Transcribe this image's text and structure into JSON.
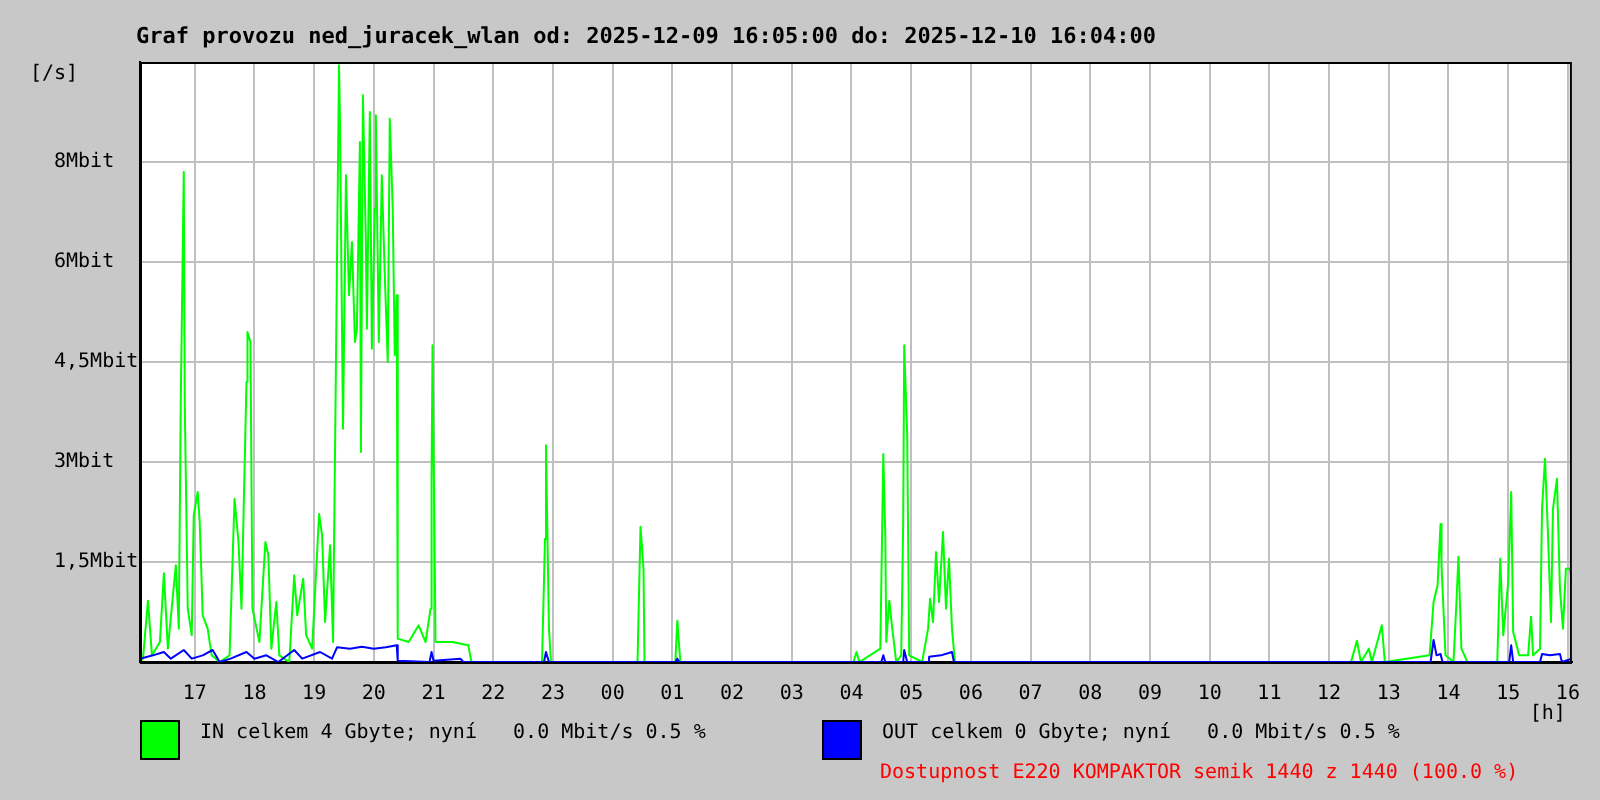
{
  "chart_data": {
    "type": "line",
    "title": "Graf provozu ned_juracek_wlan od: 2025-12-09 16:05:00 do: 2025-12-10 16:04:00",
    "xlabel": "[h]",
    "ylabel": "[/s]",
    "annotations": [
      "Dostupnost E220 KOMPAKTOR semik 1440 z 1440 (100.0 %)"
    ],
    "xlim": [
      "2025-12-09T16:05",
      "2025-12-10T16:04"
    ],
    "xticks": [
      {
        "value": "2025-12-09T17:00",
        "label": "17"
      },
      {
        "value": "2025-12-09T18:00",
        "label": "18"
      },
      {
        "value": "2025-12-09T19:00",
        "label": "19"
      },
      {
        "value": "2025-12-09T20:00",
        "label": "20"
      },
      {
        "value": "2025-12-09T21:00",
        "label": "21"
      },
      {
        "value": "2025-12-09T22:00",
        "label": "22"
      },
      {
        "value": "2025-12-09T23:00",
        "label": "23"
      },
      {
        "value": "2025-12-10T00:00",
        "label": "00"
      },
      {
        "value": "2025-12-10T01:00",
        "label": "01"
      },
      {
        "value": "2025-12-10T02:00",
        "label": "02"
      },
      {
        "value": "2025-12-10T03:00",
        "label": "03"
      },
      {
        "value": "2025-12-10T04:00",
        "label": "04"
      },
      {
        "value": "2025-12-10T05:00",
        "label": "05"
      },
      {
        "value": "2025-12-10T06:00",
        "label": "06"
      },
      {
        "value": "2025-12-10T07:00",
        "label": "07"
      },
      {
        "value": "2025-12-10T08:00",
        "label": "08"
      },
      {
        "value": "2025-12-10T09:00",
        "label": "09"
      },
      {
        "value": "2025-12-10T10:00",
        "label": "10"
      },
      {
        "value": "2025-12-10T11:00",
        "label": "11"
      },
      {
        "value": "2025-12-10T12:00",
        "label": "12"
      },
      {
        "value": "2025-12-10T13:00",
        "label": "13"
      },
      {
        "value": "2025-12-10T14:00",
        "label": "14"
      },
      {
        "value": "2025-12-10T15:00",
        "label": "15"
      },
      {
        "value": "2025-12-10T16:00",
        "label": "16"
      }
    ],
    "ylim": [
      0,
      9
    ],
    "yticks": [
      {
        "value": 1.5,
        "label": "1,5Mbit"
      },
      {
        "value": 3,
        "label": "3Mbit"
      },
      {
        "value": 4.5,
        "label": "4,5Mbit"
      },
      {
        "value": 6,
        "label": "6Mbit"
      },
      {
        "value": 7.5,
        "label": "8Mbit"
      }
    ],
    "grid": true,
    "legend": "bottom",
    "series": [
      {
        "name": "IN celkem 4 Gbyte; nyní   0.0 Mbit/s 0.5 %",
        "color": "#00ff00",
        "x": [
          "2025-12-09T16:05",
          "2025-12-09T16:08",
          "2025-12-09T16:13",
          "2025-12-09T16:17",
          "2025-12-09T16:25",
          "2025-12-09T16:29",
          "2025-12-09T16:33",
          "2025-12-09T16:41",
          "2025-12-09T16:44",
          "2025-12-09T16:46",
          "2025-12-09T16:49",
          "2025-12-09T16:50",
          "2025-12-09T16:53",
          "2025-12-09T16:57",
          "2025-12-09T16:59",
          "2025-12-09T17:03",
          "2025-12-09T17:05",
          "2025-12-09T17:08",
          "2025-12-09T17:13",
          "2025-12-09T17:17",
          "2025-12-09T17:25",
          "2025-12-09T17:35",
          "2025-12-09T17:40",
          "2025-12-09T17:44",
          "2025-12-09T17:47",
          "2025-12-09T17:52",
          "2025-12-09T17:53",
          "2025-12-09T17:56",
          "2025-12-09T17:58",
          "2025-12-09T18:05",
          "2025-12-09T18:11",
          "2025-12-09T18:14",
          "2025-12-09T18:17",
          "2025-12-09T18:22",
          "2025-12-09T18:25",
          "2025-12-09T18:35",
          "2025-12-09T18:40",
          "2025-12-09T18:43",
          "2025-12-09T18:49",
          "2025-12-09T18:52",
          "2025-12-09T18:58",
          "2025-12-09T19:05",
          "2025-12-09T19:08",
          "2025-12-09T19:11",
          "2025-12-09T19:16",
          "2025-12-09T19:19",
          "2025-12-09T19:22",
          "2025-12-09T19:25",
          "2025-12-09T19:26",
          "2025-12-09T19:29",
          "2025-12-09T19:32",
          "2025-12-09T19:35",
          "2025-12-09T19:38",
          "2025-12-09T19:41",
          "2025-12-09T19:43",
          "2025-12-09T19:46",
          "2025-12-09T19:47",
          "2025-12-09T19:49",
          "2025-12-09T19:52",
          "2025-12-09T19:53",
          "2025-12-09T19:56",
          "2025-12-09T19:58",
          "2025-12-09T20:01",
          "2025-12-09T20:02",
          "2025-12-09T20:05",
          "2025-12-09T20:08",
          "2025-12-09T20:11",
          "2025-12-09T20:14",
          "2025-12-09T20:16",
          "2025-12-09T20:19",
          "2025-12-09T20:21",
          "2025-12-09T20:23",
          "2025-12-09T20:24",
          "2025-12-09T20:35",
          "2025-12-09T20:45",
          "2025-12-09T20:52",
          "2025-12-09T20:57",
          "2025-12-09T20:58",
          "2025-12-09T20:59",
          "2025-12-09T21:02",
          "2025-12-09T21:19",
          "2025-12-09T21:35",
          "2025-12-09T21:38",
          "2025-12-09T22:49",
          "2025-12-09T22:52",
          "2025-12-09T22:53",
          "2025-12-09T22:56",
          "2025-12-09T22:58",
          "2025-12-10T00:25",
          "2025-12-10T00:28",
          "2025-12-10T00:31",
          "2025-12-10T00:32",
          "2025-12-10T01:03",
          "2025-12-10T01:05",
          "2025-12-10T01:08",
          "2025-12-10T04:02",
          "2025-12-10T04:05",
          "2025-12-10T04:08",
          "2025-12-10T04:29",
          "2025-12-10T04:32",
          "2025-12-10T04:34",
          "2025-12-10T04:35",
          "2025-12-10T04:38",
          "2025-12-10T04:41",
          "2025-12-10T04:45",
          "2025-12-10T04:50",
          "2025-12-10T04:52",
          "2025-12-10T04:53",
          "2025-12-10T04:56",
          "2025-12-10T04:58",
          "2025-12-10T05:11",
          "2025-12-10T05:17",
          "2025-12-10T05:19",
          "2025-12-10T05:22",
          "2025-12-10T05:25",
          "2025-12-10T05:28",
          "2025-12-10T05:32",
          "2025-12-10T05:35",
          "2025-12-10T05:38",
          "2025-12-10T05:41",
          "2025-12-10T05:44",
          "2025-12-10T12:22",
          "2025-12-10T12:28",
          "2025-12-10T12:32",
          "2025-12-10T12:40",
          "2025-12-10T12:43",
          "2025-12-10T12:53",
          "2025-12-10T12:56",
          "2025-12-10T13:41",
          "2025-12-10T13:45",
          "2025-12-10T13:49",
          "2025-12-10T13:52",
          "2025-12-10T13:53",
          "2025-12-10T13:57",
          "2025-12-10T14:05",
          "2025-12-10T14:08",
          "2025-12-10T14:10",
          "2025-12-10T14:13",
          "2025-12-10T14:19",
          "2025-12-10T14:49",
          "2025-12-10T14:52",
          "2025-12-10T14:55",
          "2025-12-10T15:00",
          "2025-12-10T15:03",
          "2025-12-10T15:05",
          "2025-12-10T15:11",
          "2025-12-10T15:20",
          "2025-12-10T15:23",
          "2025-12-10T15:25",
          "2025-12-10T15:32",
          "2025-12-10T15:34",
          "2025-12-10T15:37",
          "2025-12-10T15:40",
          "2025-12-10T15:43",
          "2025-12-10T15:45",
          "2025-12-10T15:49",
          "2025-12-10T15:52",
          "2025-12-10T15:55",
          "2025-12-10T15:58",
          "2025-12-10T16:02",
          "2025-12-10T16:04"
        ],
        "values": [
          0,
          0.05,
          0.92,
          0.1,
          0.3,
          1.33,
          0.2,
          1.45,
          0.5,
          3.95,
          7.35,
          3.85,
          0.8,
          0.4,
          2.2,
          2.55,
          2.1,
          0.7,
          0.5,
          0.1,
          0,
          0.1,
          2.45,
          1.8,
          0.8,
          4.2,
          4.95,
          4.8,
          0.8,
          0.3,
          1.8,
          1.6,
          0.2,
          0.9,
          0.1,
          0,
          1.3,
          0.7,
          1.25,
          0.4,
          0.2,
          2.22,
          1.9,
          0.6,
          1.75,
          0.3,
          4.6,
          8.95,
          8.1,
          3.5,
          7.3,
          5.5,
          6.3,
          4.8,
          5,
          7.8,
          3.15,
          8.5,
          6.3,
          5,
          8.25,
          4.7,
          6.8,
          8.2,
          4.8,
          7.3,
          5.8,
          4.5,
          8.15,
          6.8,
          4.6,
          5.5,
          0.35,
          0.3,
          0.55,
          0.3,
          0.8,
          2.7,
          4.75,
          0.3,
          0.3,
          0.25,
          0,
          0,
          1.85,
          3.25,
          0.5,
          0,
          0,
          2.03,
          1.4,
          0,
          0,
          0.62,
          0,
          0,
          0.15,
          0,
          0.2,
          3.12,
          1.9,
          0.3,
          0.92,
          0.5,
          0,
          0.1,
          2.12,
          4.75,
          3.4,
          0.1,
          0,
          0.5,
          0.95,
          0.6,
          1.65,
          0.9,
          1.95,
          0.8,
          1.55,
          0.5,
          0,
          0,
          0.32,
          0,
          0.2,
          0,
          0.55,
          0,
          0.1,
          0.9,
          1.15,
          2.07,
          1.45,
          0.1,
          0,
          0.9,
          1.58,
          0.2,
          0,
          0,
          1.55,
          0.4,
          1.2,
          2.55,
          0.45,
          0.1,
          0.1,
          0.68,
          0.1,
          0.2,
          2.3,
          3.05,
          1.9,
          0.6,
          2.3,
          2.75,
          1.1,
          0.5,
          1.4,
          1.4,
          1.2
        ]
      },
      {
        "name": "OUT celkem 0 Gbyte; nyní   0.0 Mbit/s 0.5 %",
        "color": "#0000ff",
        "x": [
          "2025-12-09T16:05",
          "2025-12-09T16:18",
          "2025-12-09T16:29",
          "2025-12-09T16:36",
          "2025-12-09T16:49",
          "2025-12-09T16:57",
          "2025-12-09T17:08",
          "2025-12-09T17:18",
          "2025-12-09T17:25",
          "2025-12-09T17:36",
          "2025-12-09T17:52",
          "2025-12-09T18:00",
          "2025-12-09T18:12",
          "2025-12-09T18:24",
          "2025-12-09T18:40",
          "2025-12-09T18:48",
          "2025-12-09T19:06",
          "2025-12-09T19:18",
          "2025-12-09T19:23",
          "2025-12-09T19:36",
          "2025-12-09T19:48",
          "2025-12-09T20:00",
          "2025-12-09T20:12",
          "2025-12-09T20:23",
          "2025-12-09T20:24",
          "2025-12-09T20:56",
          "2025-12-09T20:58",
          "2025-12-09T21:00",
          "2025-12-09T21:27",
          "2025-12-09T21:30",
          "2025-12-09T22:51",
          "2025-12-09T22:53",
          "2025-12-09T22:56",
          "2025-12-10T01:03",
          "2025-12-10T01:05",
          "2025-12-10T01:07",
          "2025-12-10T04:30",
          "2025-12-10T04:32",
          "2025-12-10T04:34",
          "2025-12-10T04:52",
          "2025-12-10T04:53",
          "2025-12-10T04:56",
          "2025-12-10T05:17",
          "2025-12-10T05:18",
          "2025-12-10T05:30",
          "2025-12-10T05:41",
          "2025-12-10T05:43",
          "2025-12-10T13:42",
          "2025-12-10T13:45",
          "2025-12-10T13:48",
          "2025-12-10T13:52",
          "2025-12-10T13:54",
          "2025-12-10T15:01",
          "2025-12-10T15:03",
          "2025-12-10T15:05",
          "2025-12-10T15:32",
          "2025-12-10T15:34",
          "2025-12-10T15:42",
          "2025-12-10T15:52",
          "2025-12-10T15:54",
          "2025-12-10T16:04"
        ],
        "values": [
          0.05,
          0.1,
          0.15,
          0.05,
          0.18,
          0.05,
          0.1,
          0.18,
          0,
          0.05,
          0.15,
          0.05,
          0.1,
          0,
          0.18,
          0.05,
          0.15,
          0.05,
          0.22,
          0.2,
          0.23,
          0.2,
          0.22,
          0.25,
          0.02,
          0,
          0.15,
          0.02,
          0.05,
          0,
          0,
          0.15,
          0,
          0,
          0.05,
          0,
          0,
          0.1,
          0,
          0,
          0.18,
          0,
          0,
          0.08,
          0.1,
          0.15,
          0,
          0,
          0.33,
          0.1,
          0.12,
          0,
          0,
          0.25,
          0,
          0,
          0.12,
          0.1,
          0.12,
          0,
          0.05
        ]
      }
    ]
  }
}
